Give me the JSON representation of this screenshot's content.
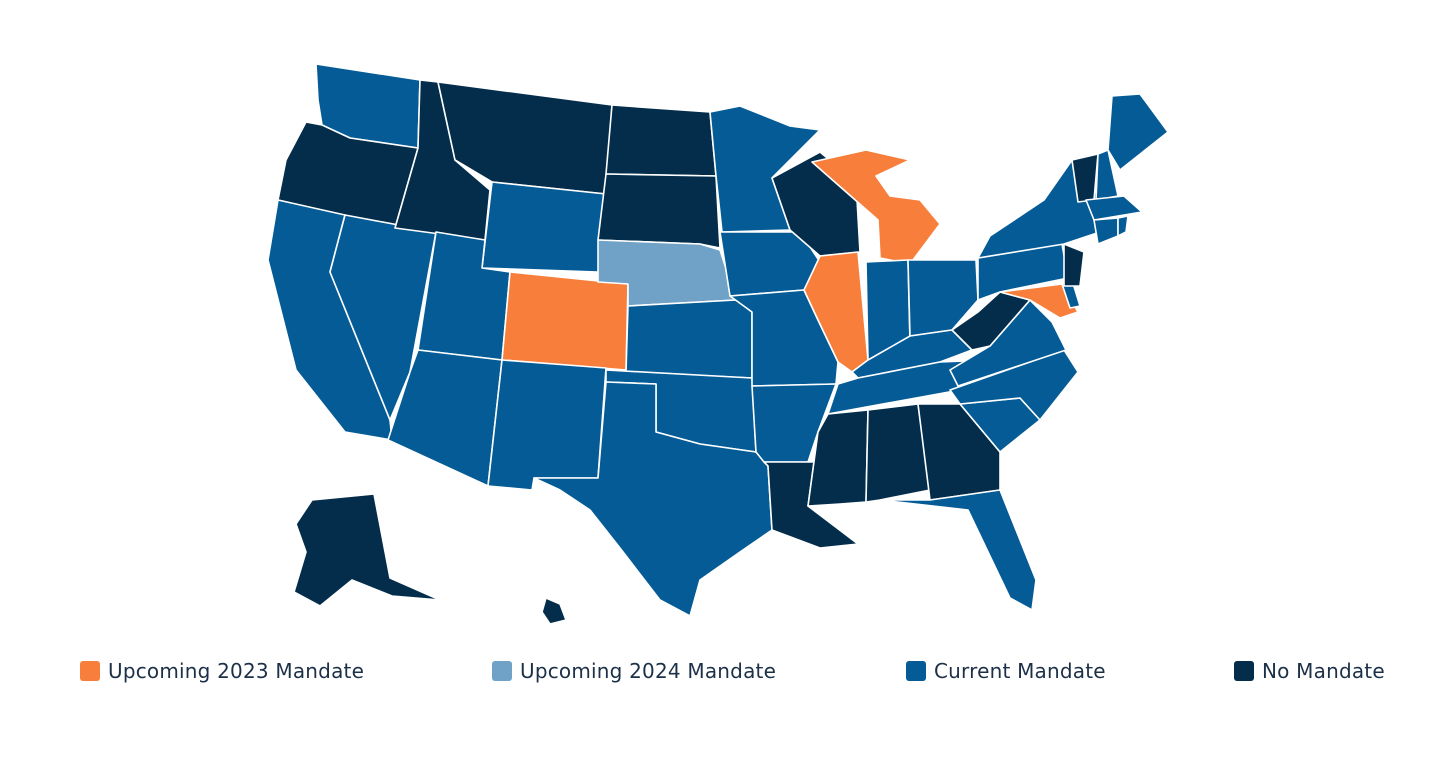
{
  "colors": {
    "upcoming_2023": "#f77f3b",
    "upcoming_2024": "#6fa2c6",
    "current": "#045b96",
    "none": "#032d4a",
    "border": "#ffffff"
  },
  "legend": [
    {
      "key": "upcoming_2023",
      "label": "Upcoming 2023 Mandate"
    },
    {
      "key": "upcoming_2024",
      "label": "Upcoming 2024 Mandate"
    },
    {
      "key": "current",
      "label": "Current Mandate"
    },
    {
      "key": "none",
      "label": "No Mandate"
    }
  ],
  "states": {
    "WA": "current",
    "OR": "none",
    "CA": "current",
    "NV": "current",
    "ID": "none",
    "MT": "none",
    "WY": "current",
    "UT": "current",
    "AZ": "current",
    "CO": "upcoming_2023",
    "NM": "current",
    "ND": "none",
    "SD": "none",
    "NE": "upcoming_2024",
    "KS": "current",
    "OK": "current",
    "TX": "current",
    "MN": "current",
    "IA": "current",
    "MO": "current",
    "AR": "current",
    "LA": "none",
    "WI": "none",
    "IL": "upcoming_2023",
    "MI": "upcoming_2023",
    "IN": "current",
    "OH": "current",
    "KY": "current",
    "TN": "current",
    "MS": "none",
    "AL": "none",
    "GA": "none",
    "FL": "current",
    "SC": "current",
    "NC": "current",
    "VA": "current",
    "WV": "none",
    "MD": "upcoming_2023",
    "DE": "current",
    "PA": "current",
    "NJ": "none",
    "NY": "current",
    "CT": "current",
    "RI": "current",
    "MA": "current",
    "VT": "none",
    "NH": "current",
    "ME": "current",
    "AK": "none",
    "HI": "none"
  }
}
